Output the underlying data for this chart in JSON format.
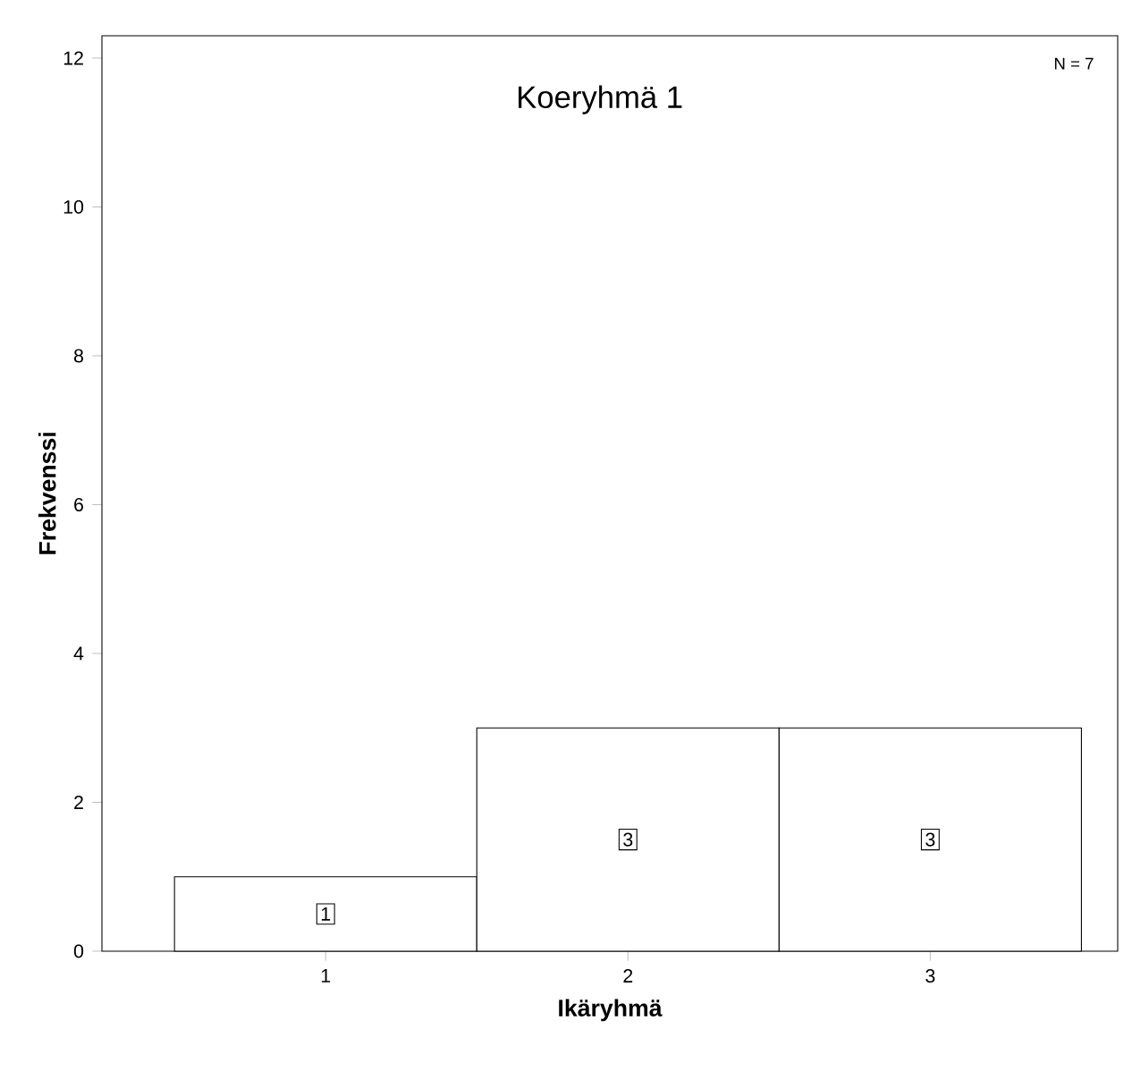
{
  "chart_data": {
    "type": "bar",
    "title": "Koeryhmä 1",
    "xlabel": "Ikäryhmä",
    "ylabel": "Frekvenssi",
    "categories": [
      "1",
      "2",
      "3"
    ],
    "values": [
      1,
      3,
      3
    ],
    "color": "#ffffff",
    "ylim": [
      0,
      12.3
    ],
    "yticks": [
      0,
      2,
      4,
      6,
      8,
      10,
      12
    ],
    "data_labels": true,
    "annotations": [
      "N = 7"
    ]
  }
}
